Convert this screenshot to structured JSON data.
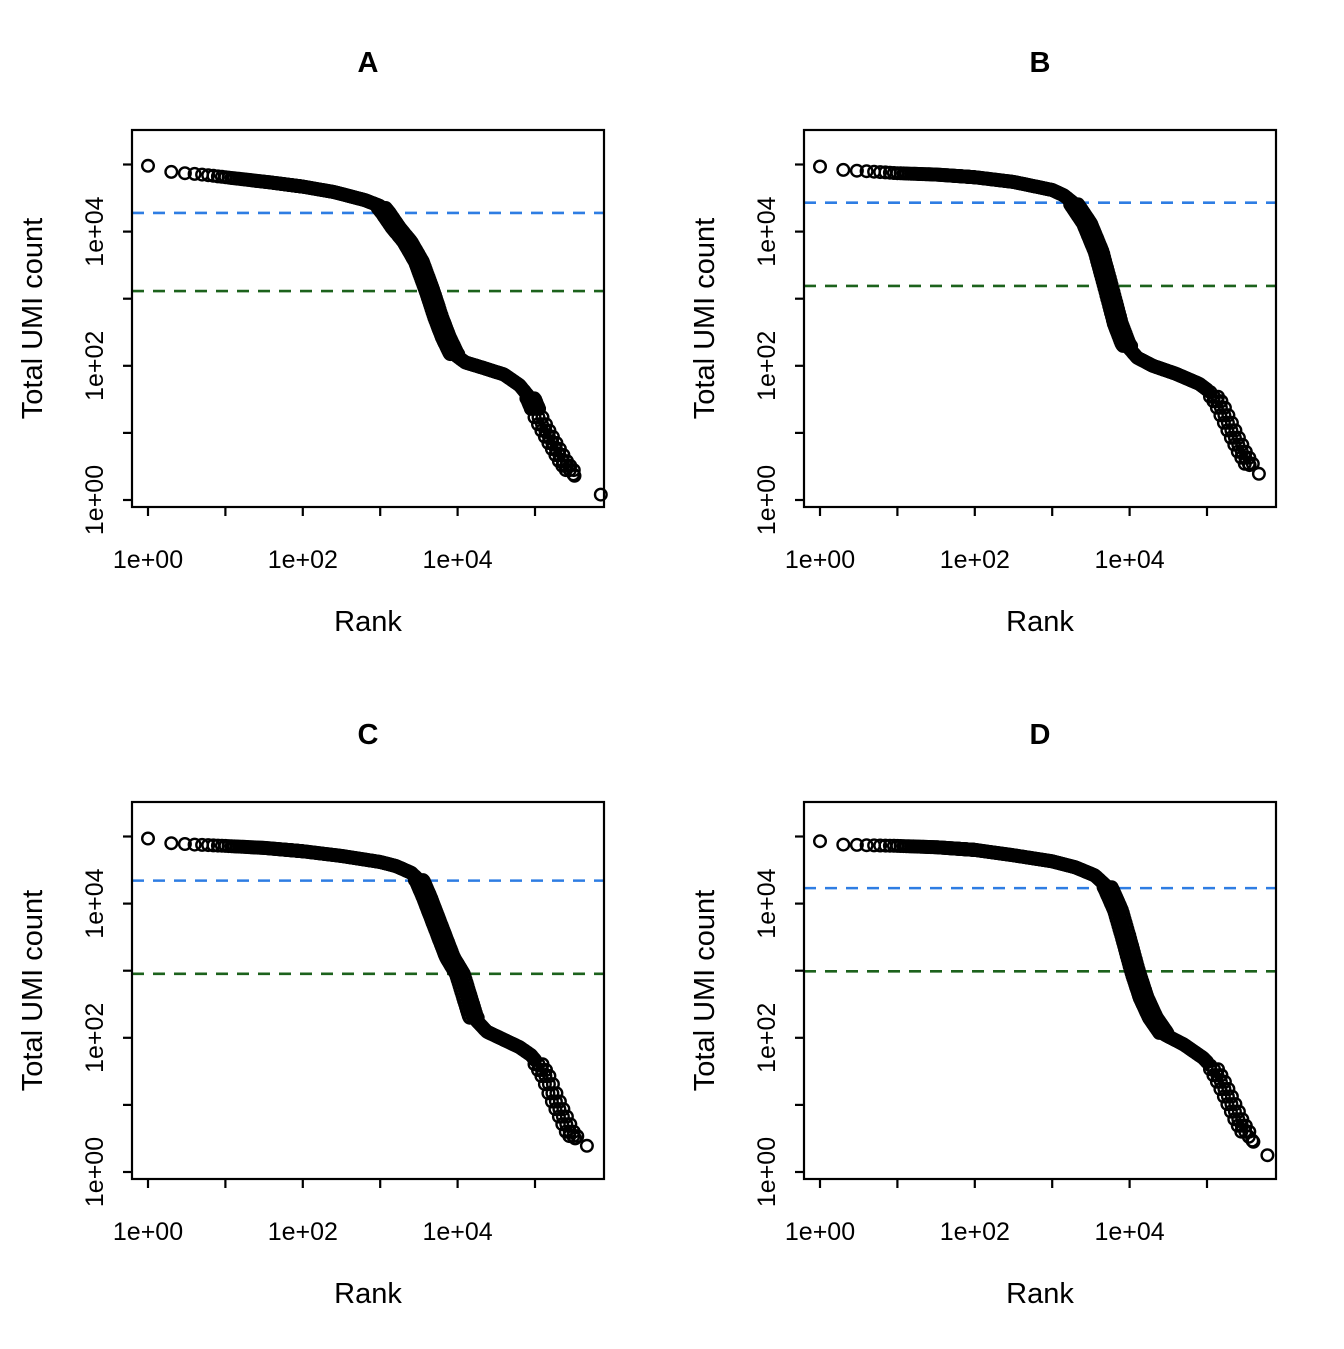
{
  "figure": {
    "description": "Barcode rank knee plots, 2x2 grid",
    "background": "#ffffff"
  },
  "chart_data": {
    "type": "scatter",
    "grid": "2x2",
    "point_style": "open-circle",
    "colors": {
      "points": "#000000",
      "knee_line": "#2e7de3",
      "inflection_line": "#1c621c",
      "axis": "#000000"
    },
    "axes": {
      "x": {
        "label": "Rank",
        "scale": "log10",
        "range_log10": [
          -0.2,
          5.9
        ],
        "ticks": [
          {
            "log": 0,
            "label": "1e+00"
          },
          {
            "log": 1,
            "label": ""
          },
          {
            "log": 2,
            "label": "1e+02"
          },
          {
            "log": 3,
            "label": ""
          },
          {
            "log": 4,
            "label": "1e+04"
          },
          {
            "log": 5,
            "label": ""
          }
        ]
      },
      "y": {
        "label": "Total UMI count",
        "scale": "log10",
        "range_log10": [
          -0.1,
          5.5
        ],
        "ticks": [
          {
            "log": 0,
            "label": "1e+00"
          },
          {
            "log": 1,
            "label": ""
          },
          {
            "log": 2,
            "label": "1e+02"
          },
          {
            "log": 3,
            "label": ""
          },
          {
            "log": 4,
            "label": "1e+04"
          },
          {
            "log": 5,
            "label": ""
          }
        ]
      }
    },
    "panels": [
      {
        "id": "A",
        "title": "A",
        "knee": 19000,
        "inflection": 1300,
        "curve_log10": [
          [
            0,
            4.98
          ],
          [
            0.3,
            4.89
          ],
          [
            0.48,
            4.87
          ],
          [
            0.6,
            4.86
          ],
          [
            0.78,
            4.84
          ],
          [
            1.0,
            4.81
          ],
          [
            1.3,
            4.77
          ],
          [
            1.6,
            4.73
          ],
          [
            2.0,
            4.67
          ],
          [
            2.4,
            4.59
          ],
          [
            2.8,
            4.47
          ],
          [
            3.0,
            4.38
          ],
          [
            3.07,
            4.28
          ],
          [
            3.2,
            4.06
          ],
          [
            3.35,
            3.85
          ],
          [
            3.5,
            3.55
          ],
          [
            3.64,
            3.11
          ],
          [
            3.75,
            2.72
          ],
          [
            3.85,
            2.42
          ],
          [
            3.95,
            2.18
          ],
          [
            4.1,
            2.05
          ],
          [
            4.3,
            1.98
          ],
          [
            4.6,
            1.87
          ],
          [
            4.8,
            1.71
          ],
          [
            4.95,
            1.5
          ],
          [
            5.06,
            1.19
          ],
          [
            5.2,
            0.9
          ],
          [
            5.37,
            0.56
          ],
          [
            5.51,
            0.36
          ]
        ],
        "last_point_log10": [
          5.85,
          0.08
        ]
      },
      {
        "id": "B",
        "title": "B",
        "knee": 27000,
        "inflection": 1550,
        "curve_log10": [
          [
            0,
            4.97
          ],
          [
            0.3,
            4.92
          ],
          [
            0.6,
            4.9
          ],
          [
            1.0,
            4.87
          ],
          [
            1.5,
            4.85
          ],
          [
            2.0,
            4.81
          ],
          [
            2.5,
            4.74
          ],
          [
            3.0,
            4.62
          ],
          [
            3.15,
            4.54
          ],
          [
            3.27,
            4.43
          ],
          [
            3.45,
            4.12
          ],
          [
            3.6,
            3.7
          ],
          [
            3.72,
            3.19
          ],
          [
            3.85,
            2.62
          ],
          [
            3.95,
            2.32
          ],
          [
            4.1,
            2.12
          ],
          [
            4.3,
            2.0
          ],
          [
            4.6,
            1.88
          ],
          [
            4.9,
            1.73
          ],
          [
            5.05,
            1.6
          ],
          [
            5.15,
            1.45
          ],
          [
            5.25,
            1.2
          ],
          [
            5.35,
            0.95
          ],
          [
            5.45,
            0.72
          ],
          [
            5.55,
            0.52
          ]
        ],
        "last_point_log10": [
          5.67,
          0.39
        ]
      },
      {
        "id": "C",
        "title": "C",
        "knee": 22000,
        "inflection": 900,
        "curve_log10": [
          [
            0,
            4.97
          ],
          [
            0.3,
            4.9
          ],
          [
            0.6,
            4.88
          ],
          [
            1.0,
            4.86
          ],
          [
            1.5,
            4.83
          ],
          [
            2.0,
            4.78
          ],
          [
            2.5,
            4.71
          ],
          [
            3.0,
            4.62
          ],
          [
            3.2,
            4.56
          ],
          [
            3.4,
            4.46
          ],
          [
            3.51,
            4.34
          ],
          [
            3.6,
            4.1
          ],
          [
            3.7,
            3.8
          ],
          [
            3.8,
            3.5
          ],
          [
            3.9,
            3.2
          ],
          [
            4.03,
            2.95
          ],
          [
            4.12,
            2.61
          ],
          [
            4.2,
            2.31
          ],
          [
            4.38,
            2.09
          ],
          [
            4.6,
            1.97
          ],
          [
            4.8,
            1.86
          ],
          [
            4.95,
            1.74
          ],
          [
            5.05,
            1.6
          ],
          [
            5.15,
            1.4
          ],
          [
            5.25,
            1.1
          ],
          [
            5.35,
            0.85
          ],
          [
            5.45,
            0.6
          ],
          [
            5.52,
            0.5
          ]
        ],
        "last_point_log10": [
          5.67,
          0.39
        ]
      },
      {
        "id": "D",
        "title": "D",
        "knee": 17000,
        "inflection": 980,
        "curve_log10": [
          [
            0,
            4.93
          ],
          [
            0.3,
            4.88
          ],
          [
            0.6,
            4.87
          ],
          [
            1.0,
            4.86
          ],
          [
            1.5,
            4.84
          ],
          [
            2.0,
            4.8
          ],
          [
            2.5,
            4.72
          ],
          [
            3.0,
            4.63
          ],
          [
            3.3,
            4.54
          ],
          [
            3.55,
            4.42
          ],
          [
            3.72,
            4.24
          ],
          [
            3.85,
            3.9
          ],
          [
            3.95,
            3.5
          ],
          [
            4.07,
            2.99
          ],
          [
            4.18,
            2.6
          ],
          [
            4.3,
            2.3
          ],
          [
            4.45,
            2.05
          ],
          [
            4.7,
            1.9
          ],
          [
            4.95,
            1.7
          ],
          [
            5.1,
            1.52
          ],
          [
            5.2,
            1.3
          ],
          [
            5.3,
            1.05
          ],
          [
            5.42,
            0.75
          ],
          [
            5.52,
            0.55
          ],
          [
            5.6,
            0.45
          ]
        ],
        "last_point_log10": [
          5.78,
          0.25
        ]
      }
    ]
  }
}
